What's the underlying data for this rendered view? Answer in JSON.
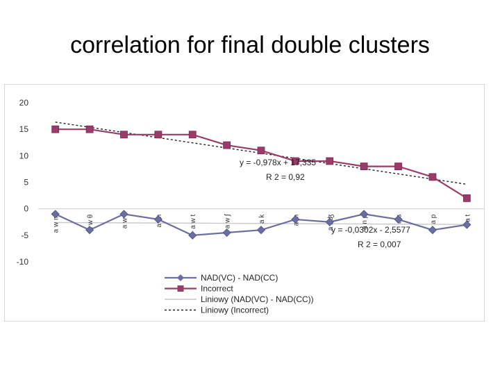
{
  "title": "correlation for final double clusters",
  "chart_data": {
    "type": "line",
    "categories": [
      "a w m",
      "a w θ",
      "a w l",
      "a j n",
      "a w t",
      "a w ʃ",
      "a k",
      "a m",
      "a r ʤ",
      "a n p",
      "a s",
      "a p",
      "a t"
    ],
    "ylim": [
      -10,
      20
    ],
    "yticks": [
      -10,
      -5,
      0,
      5,
      10,
      15,
      20
    ],
    "grid": false,
    "legend_position": "bottom",
    "series": [
      {
        "name": "NAD(VC) - NAD(CC)",
        "values": [
          -1,
          -4,
          -1,
          -2,
          -5,
          -4.5,
          -4,
          -2,
          -2.5,
          -1,
          -2,
          -4,
          -3
        ],
        "color": "#6a6ea2",
        "marker": "diamond"
      },
      {
        "name": "Incorrect",
        "values": [
          15,
          15,
          14,
          14,
          14,
          12,
          11,
          9,
          9,
          8,
          8,
          6,
          2
        ],
        "color": "#9b3b6a",
        "marker": "square"
      }
    ],
    "trendlines": [
      {
        "name": "Liniowy (NAD(VC) - NAD(CC))",
        "slope": -0.0302,
        "intercept": -2.5577,
        "style": "solid",
        "color": "#c8c8c8"
      },
      {
        "name": "Liniowy (Incorrect)",
        "slope": -0.978,
        "intercept": 17.335,
        "style": "dotted",
        "color": "#222222"
      }
    ],
    "annotations": [
      {
        "eq": "y = -0,978x + 17,335",
        "r2": "R 2 = 0,92"
      },
      {
        "eq": "y = -0,0302x - 2,5577",
        "r2": "R 2 = 0,007"
      }
    ]
  }
}
